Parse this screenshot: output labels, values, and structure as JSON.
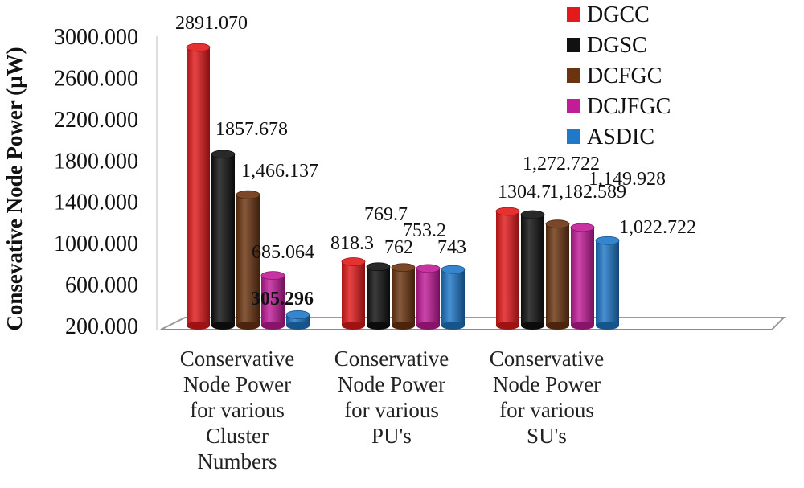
{
  "chart_data": {
    "type": "bar",
    "title": "",
    "ylabel": "Consevative Node Power (µW)",
    "xlabel": "",
    "ylim": [
      200,
      3000
    ],
    "yticks": [
      "200.000",
      "600.000",
      "1000.000",
      "1400.000",
      "1800.000",
      "2200.000",
      "2600.000",
      "3000.000"
    ],
    "categories": [
      [
        "Conservative",
        "Node Power",
        "for various",
        "Cluster",
        "Numbers"
      ],
      [
        "Conservative",
        "Node Power",
        "for various",
        "PU's"
      ],
      [
        "Conservative",
        "Node Power",
        "for various",
        "SU's"
      ]
    ],
    "series": [
      {
        "name": "DGCC",
        "color": "#e31a1c",
        "values": [
          2891.07,
          818.3,
          1304.7
        ],
        "labels": [
          "2891.070",
          "818.3",
          "1304.7"
        ]
      },
      {
        "name": "DGSC",
        "color": "#111111",
        "values": [
          1857.678,
          769.7,
          1272.722
        ],
        "labels": [
          "1857.678",
          "769.7",
          "1,272.722"
        ]
      },
      {
        "name": "DCFGC",
        "color": "#6b3410",
        "values": [
          1466.137,
          762,
          1182.589
        ],
        "labels": [
          "1,466.137",
          "762",
          "1,182.589"
        ]
      },
      {
        "name": "DCJFGC",
        "color": "#c21c98",
        "values": [
          685.064,
          753.2,
          1149.928
        ],
        "labels": [
          "685.064",
          "753.2",
          "1,149.928"
        ]
      },
      {
        "name": "ASDIC",
        "color": "#1f78c8",
        "values": [
          305.296,
          743,
          1022.722
        ],
        "labels": [
          "305.296",
          "743",
          "1,022.722"
        ]
      }
    ],
    "legend_position": "top-right",
    "grid": false
  }
}
